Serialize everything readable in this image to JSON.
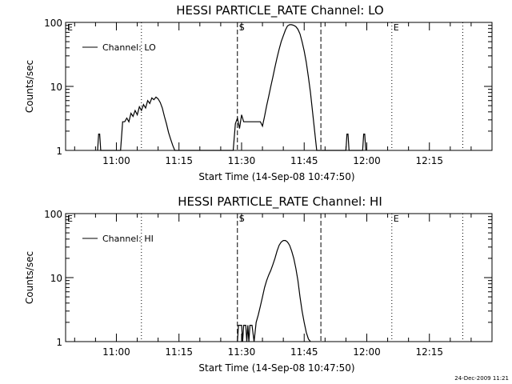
{
  "footer": "24-Dec-2009 11:21",
  "chart_data": [
    {
      "type": "line",
      "title": "HESSI PARTICLE_RATE Channel: LO",
      "xlabel": "Start Time (14-Sep-08 10:47:50)",
      "ylabel": "Counts/sec",
      "yscale": "log",
      "ylim": [
        1,
        100
      ],
      "xlim": [
        "10:47:50",
        "12:30:00"
      ],
      "xticks": [
        "11:00",
        "11:15",
        "11:30",
        "11:45",
        "12:00",
        "12:15"
      ],
      "yticks": [
        "1",
        "10",
        "100"
      ],
      "legend": "top-left",
      "markers": [
        {
          "time": "10:47:50",
          "label": "E",
          "style": "dotted"
        },
        {
          "time": "11:06",
          "label": "",
          "style": "dotted"
        },
        {
          "time": "11:29",
          "label": "S",
          "style": "dashed"
        },
        {
          "time": "11:49",
          "label": "",
          "style": "dashed"
        },
        {
          "time": "12:06",
          "label": "E",
          "style": "dotted"
        },
        {
          "time": "12:23",
          "label": "",
          "style": "dotted"
        }
      ],
      "series": [
        {
          "name": "Channel: LO",
          "x": [
            "10:55:30",
            "10:55:45",
            "10:56:00",
            "10:56:15",
            "11:01:00",
            "11:01:30",
            "11:02:00",
            "11:02:30",
            "11:03:00",
            "11:03:30",
            "11:04:00",
            "11:04:30",
            "11:05:00",
            "11:05:30",
            "11:06:00",
            "11:06:30",
            "11:07:00",
            "11:07:30",
            "11:08:00",
            "11:08:30",
            "11:09:00",
            "11:09:30",
            "11:10:00",
            "11:10:30",
            "11:11:00",
            "11:11:30",
            "11:12:00",
            "11:12:30",
            "11:13:00",
            "11:13:30",
            "11:14:00",
            "11:28:00",
            "11:28:30",
            "11:29:00",
            "11:29:30",
            "11:30:00",
            "11:30:30",
            "11:31:00",
            "11:31:30",
            "11:32:00",
            "11:32:30",
            "11:33:00",
            "11:33:30",
            "11:34:00",
            "11:34:30",
            "11:35:00",
            "11:35:30",
            "11:36:00",
            "11:36:30",
            "11:37:00",
            "11:37:30",
            "11:38:00",
            "11:38:30",
            "11:39:00",
            "11:39:30",
            "11:40:00",
            "11:40:30",
            "11:41:00",
            "11:41:30",
            "11:42:00",
            "11:42:30",
            "11:43:00",
            "11:43:30",
            "11:44:00",
            "11:44:30",
            "11:45:00",
            "11:45:30",
            "11:46:00",
            "11:46:30",
            "11:47:00",
            "11:47:30",
            "11:48:00",
            "11:55:00",
            "11:55:15",
            "11:55:30",
            "11:55:45",
            "11:59:00",
            "11:59:15",
            "11:59:30",
            "11:59:45"
          ],
          "values": [
            1,
            1.8,
            1.8,
            1,
            1,
            2.8,
            2.8,
            3.2,
            2.8,
            3.8,
            3.4,
            4.2,
            3.6,
            4.8,
            4.2,
            5.2,
            4.6,
            6,
            5.4,
            6.6,
            6.2,
            6.8,
            6.4,
            5.6,
            4.6,
            3.4,
            2.6,
            1.9,
            1.5,
            1.2,
            1,
            1,
            2.6,
            3.2,
            2.2,
            3.6,
            2.8,
            2.8,
            2.8,
            2.8,
            2.8,
            2.8,
            2.8,
            2.8,
            2.8,
            2.4,
            3.4,
            5,
            7,
            10,
            14,
            20,
            28,
            38,
            50,
            62,
            76,
            88,
            92,
            92,
            90,
            86,
            78,
            66,
            50,
            36,
            24,
            14,
            8,
            4,
            2,
            1,
            1,
            1.8,
            1.8,
            1,
            1,
            1.8,
            1.8,
            1
          ]
        }
      ]
    },
    {
      "type": "line",
      "title": "HESSI PARTICLE_RATE Channel: HI",
      "xlabel": "Start Time (14-Sep-08 10:47:50)",
      "ylabel": "Counts/sec",
      "yscale": "log",
      "ylim": [
        1,
        100
      ],
      "xlim": [
        "10:47:50",
        "12:30:00"
      ],
      "xticks": [
        "11:00",
        "11:15",
        "11:30",
        "11:45",
        "12:00",
        "12:15"
      ],
      "yticks": [
        "1",
        "10",
        "100"
      ],
      "legend": "top-left",
      "markers": [
        {
          "time": "10:47:50",
          "label": "E",
          "style": "dotted"
        },
        {
          "time": "11:06",
          "label": "",
          "style": "dotted"
        },
        {
          "time": "11:29",
          "label": "S",
          "style": "dashed"
        },
        {
          "time": "11:49",
          "label": "",
          "style": "dashed"
        },
        {
          "time": "12:06",
          "label": "E",
          "style": "dotted"
        },
        {
          "time": "12:23",
          "label": "",
          "style": "dotted"
        }
      ],
      "series": [
        {
          "name": "Channel: HI",
          "x": [
            "11:29:00",
            "11:29:15",
            "11:29:30",
            "11:29:45",
            "11:30:00",
            "11:30:15",
            "11:30:30",
            "11:31:00",
            "11:31:15",
            "11:31:30",
            "11:31:45",
            "11:32:00",
            "11:32:15",
            "11:32:30",
            "11:33:00",
            "11:33:30",
            "11:34:00",
            "11:34:30",
            "11:35:00",
            "11:35:30",
            "11:36:00",
            "11:36:30",
            "11:37:00",
            "11:37:30",
            "11:38:00",
            "11:38:30",
            "11:39:00",
            "11:39:30",
            "11:40:00",
            "11:40:30",
            "11:41:00",
            "11:41:30",
            "11:42:00",
            "11:42:30",
            "11:43:00",
            "11:43:30",
            "11:44:00",
            "11:44:30",
            "11:45:00",
            "11:45:30",
            "11:46:00",
            "11:46:30"
          ],
          "values": [
            1,
            1.8,
            1.8,
            1.8,
            1.8,
            1,
            1.8,
            1.8,
            1,
            1.8,
            1,
            1.8,
            1.8,
            1.8,
            1,
            2,
            2.6,
            3.6,
            5,
            7,
            9,
            11,
            13,
            16,
            20,
            26,
            32,
            36,
            38,
            38,
            36,
            32,
            26,
            20,
            14,
            9,
            5,
            3,
            2,
            1.4,
            1.1,
            1
          ]
        }
      ]
    }
  ]
}
